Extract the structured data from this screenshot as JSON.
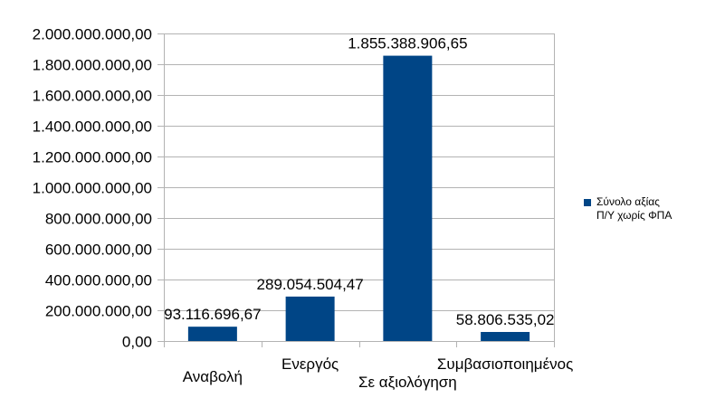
{
  "chart_data": {
    "type": "bar",
    "title": "",
    "xlabel": "",
    "ylabel": "",
    "categories": [
      "Αναβολή",
      "Ενεργός",
      "Σε αξιολόγηση",
      "Συμβασιοποιημένος"
    ],
    "series": [
      {
        "name": "Σύνολο αξίας Π/Υ  χωρίς ΦΠΑ",
        "color": "#004586",
        "values": [
          93116696.67,
          289054504.47,
          1855388906.65,
          58806535.02
        ],
        "labels": [
          "93.116.696,67",
          "289.054.504,47",
          "1.855.388.906,65",
          "58.806.535,02"
        ]
      }
    ],
    "ylim": [
      0,
      2000000000
    ],
    "yticks": [
      0,
      200000000,
      400000000,
      600000000,
      800000000,
      1000000000,
      1200000000,
      1400000000,
      1600000000,
      1800000000,
      2000000000
    ],
    "ytick_labels": [
      "0,00",
      "200.000.000,00",
      "400.000.000,00",
      "600.000.000,00",
      "800.000.000,00",
      "1.000.000.000,00",
      "1.200.000.000,00",
      "1.400.000.000,00",
      "1.600.000.000,00",
      "1.800.000.000,00",
      "2.000.000.000,00"
    ],
    "grid": true,
    "legend_position": "right"
  },
  "legend": {
    "line1": "Σύνολο αξίας",
    "line2": "Π/Υ  χωρίς ΦΠΑ"
  },
  "colors": {
    "bar": "#004586",
    "grid": "#b3b3b3"
  }
}
